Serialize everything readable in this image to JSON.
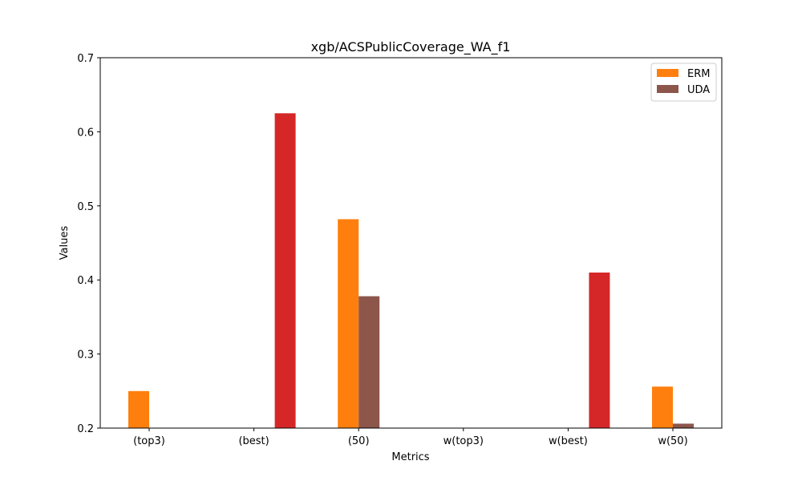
{
  "chart_data": {
    "type": "bar",
    "title": "xgb/ACSPublicCoverage_WA_f1",
    "xlabel": "Metrics",
    "ylabel": "Values",
    "ylim": [
      0.2,
      0.7
    ],
    "yticks": [
      "0.2",
      "0.3",
      "0.4",
      "0.5",
      "0.6",
      "0.7"
    ],
    "categories": [
      "(top3)",
      "(best)",
      "(50)",
      "w(top3)",
      "w(best)",
      "w(50)"
    ],
    "series": [
      {
        "name": "ERM",
        "color": "#ff7f0e",
        "values": [
          0.25,
          null,
          0.482,
          null,
          null,
          0.256
        ]
      },
      {
        "name": "UDA",
        "color": "#8c564b",
        "values": [
          null,
          null,
          0.378,
          null,
          null,
          0.206
        ]
      }
    ],
    "extra_bars": {
      "color": "#d62728",
      "values": [
        null,
        0.625,
        null,
        null,
        0.41,
        null
      ]
    },
    "legend": {
      "position": "top-right",
      "entries": [
        "ERM",
        "UDA"
      ]
    },
    "grid": false
  }
}
